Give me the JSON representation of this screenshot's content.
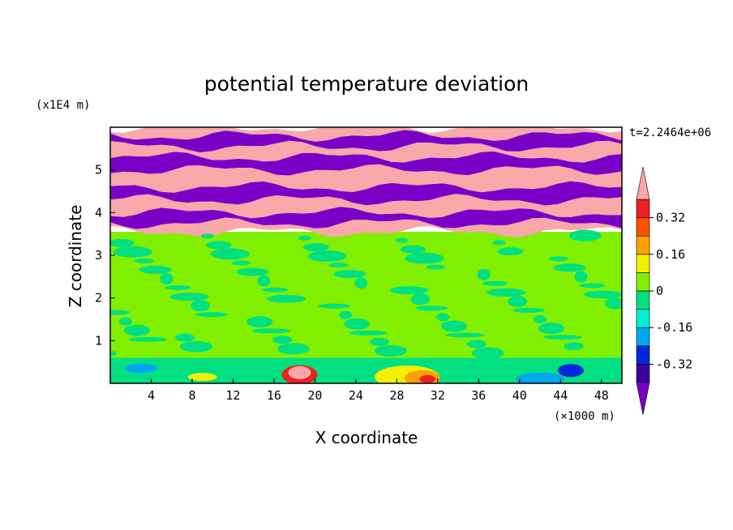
{
  "chart_data": {
    "type": "contour",
    "title": "potential temperature deviation",
    "xlabel": "X coordinate",
    "ylabel": "Z coordinate",
    "x_unit": "(×1000 m)",
    "y_unit": "(x1E4 m)",
    "time_label": "t=2.2464e+06",
    "xlim": [
      0,
      50
    ],
    "ylim": [
      0,
      6
    ],
    "x_ticks": [
      4,
      8,
      12,
      16,
      20,
      24,
      28,
      32,
      36,
      40,
      44,
      48
    ],
    "y_ticks": [
      1,
      2,
      3,
      4,
      5
    ],
    "colorbar": {
      "levels": [
        -0.4,
        -0.32,
        -0.24,
        -0.16,
        -0.08,
        0,
        0.08,
        0.16,
        0.24,
        0.32,
        0.4
      ],
      "labels": [
        "0.32",
        "0.16",
        "0",
        "-0.16",
        "-0.32"
      ],
      "label_values": [
        0.32,
        0.16,
        0,
        -0.16,
        -0.32
      ],
      "colors": [
        "#7a00c8",
        "#3a00a0",
        "#0028d8",
        "#00a8f0",
        "#00f0d0",
        "#00e080",
        "#80f000",
        "#f0f000",
        "#ffa000",
        "#ff5000",
        "#f02020",
        "#f8a8a8"
      ],
      "extend": "both"
    },
    "bands": [
      {
        "z_from": 0.0,
        "z_to": 0.6,
        "desc": "surface layer, mixed",
        "color": "#00e080"
      },
      {
        "z_from": 0.6,
        "z_to": 3.55,
        "desc": "mid layer",
        "color": "#80f000"
      },
      {
        "z_from": 3.55,
        "z_to": 3.75,
        "desc": "pink",
        "color": "#f8a8a8"
      },
      {
        "z_from": 3.75,
        "z_to": 4.0,
        "desc": "purple",
        "color": "#7a00c8"
      },
      {
        "z_from": 4.0,
        "z_to": 4.3,
        "desc": "pink",
        "color": "#f8a8a8"
      },
      {
        "z_from": 4.3,
        "z_to": 4.6,
        "desc": "purple",
        "color": "#7a00c8"
      },
      {
        "z_from": 4.6,
        "z_to": 5.0,
        "desc": "pink",
        "color": "#f8a8a8"
      },
      {
        "z_from": 5.0,
        "z_to": 5.3,
        "desc": "purple",
        "color": "#7a00c8"
      },
      {
        "z_from": 5.3,
        "z_to": 5.55,
        "desc": "pink",
        "color": "#f8a8a8"
      },
      {
        "z_from": 5.55,
        "z_to": 5.8,
        "desc": "purple",
        "color": "#7a00c8"
      },
      {
        "z_from": 5.8,
        "z_to": 6.0,
        "desc": "pink",
        "color": "#f8a8a8"
      }
    ]
  }
}
